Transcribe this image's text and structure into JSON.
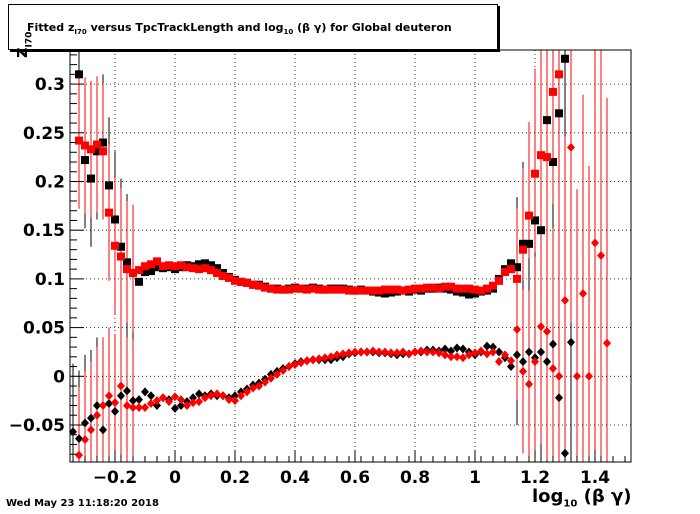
{
  "title": {
    "parts": [
      "Fitted  z",
      "I70",
      "  versus TpcTrackLength and log",
      "10",
      " (β γ) for Global deuteron"
    ]
  },
  "timestamp": "Wed May 23 11:18:20 2018",
  "chart_data": {
    "type": "scatter",
    "title": "Fitted z_I70 versus TpcTrackLength and log10 (β γ) for Global deuteron",
    "xlabel": "log10 (β γ)",
    "ylabel": "z_I70",
    "xlim": [
      -0.35,
      1.52
    ],
    "ylim": [
      -0.088,
      0.335
    ],
    "grid": true,
    "x_ticks": [
      -0.2,
      0,
      0.2,
      0.4,
      0.6,
      0.8,
      1,
      1.2,
      1.4
    ],
    "x_tick_labels": [
      "−0.2",
      "0",
      "0.2",
      "0.4",
      "0.6",
      "0.8",
      "1",
      "1.2",
      "1.4"
    ],
    "y_ticks": [
      -0.05,
      0,
      0.05,
      0.1,
      0.15,
      0.2,
      0.25,
      0.3
    ],
    "y_tick_labels": [
      "−0.05",
      "0",
      "0.05",
      "0.1",
      "0.15",
      "0.2",
      "0.25",
      "0.3"
    ],
    "colors": {
      "black": "#000000",
      "red": "#ff0000"
    },
    "series": [
      {
        "marker": "square",
        "color": "#000000",
        "x": [
          -0.32,
          -0.3,
          -0.28,
          -0.26,
          -0.24,
          -0.22,
          -0.2,
          -0.18,
          -0.16,
          -0.14,
          -0.12,
          -0.1,
          -0.08,
          -0.06,
          -0.04,
          -0.02,
          0,
          0.02,
          0.04,
          0.06,
          0.08,
          0.1,
          0.12,
          0.14,
          0.16,
          0.18,
          0.2,
          0.22,
          0.24,
          0.26,
          0.28,
          0.3,
          0.32,
          0.34,
          0.36,
          0.38,
          0.4,
          0.42,
          0.44,
          0.46,
          0.48,
          0.5,
          0.52,
          0.54,
          0.56,
          0.58,
          0.6,
          0.62,
          0.64,
          0.66,
          0.68,
          0.7,
          0.72,
          0.74,
          0.76,
          0.78,
          0.8,
          0.82,
          0.84,
          0.86,
          0.88,
          0.9,
          0.92,
          0.94,
          0.96,
          0.98,
          1,
          1.02,
          1.04,
          1.06,
          1.08,
          1.1,
          1.12,
          1.14,
          1.16,
          1.18,
          1.2,
          1.22,
          1.24,
          1.26,
          1.28,
          1.3
        ],
        "y": [
          0.31,
          0.222,
          0.203,
          0.231,
          0.24,
          0.196,
          0.161,
          0.133,
          0.117,
          0.106,
          0.097,
          0.107,
          0.108,
          0.112,
          0.111,
          0.112,
          0.11,
          0.112,
          0.114,
          0.113,
          0.115,
          0.116,
          0.114,
          0.111,
          0.106,
          0.102,
          0.099,
          0.097,
          0.096,
          0.094,
          0.094,
          0.092,
          0.09,
          0.09,
          0.089,
          0.09,
          0.091,
          0.09,
          0.09,
          0.091,
          0.09,
          0.089,
          0.09,
          0.09,
          0.09,
          0.089,
          0.088,
          0.089,
          0.088,
          0.087,
          0.086,
          0.085,
          0.086,
          0.087,
          0.088,
          0.087,
          0.089,
          0.088,
          0.09,
          0.09,
          0.091,
          0.09,
          0.089,
          0.087,
          0.086,
          0.084,
          0.085,
          0.087,
          0.088,
          0.09,
          0.1,
          0.11,
          0.116,
          0.112,
          0.136,
          0.136,
          0.16,
          0.15,
          0.263,
          0.22,
          0.27,
          0.326
        ]
      },
      {
        "marker": "square",
        "color": "#ff0000",
        "x": [
          -0.32,
          -0.3,
          -0.28,
          -0.26,
          -0.24,
          -0.22,
          -0.2,
          -0.18,
          -0.16,
          -0.14,
          -0.12,
          -0.1,
          -0.08,
          -0.06,
          -0.04,
          -0.02,
          0,
          0.02,
          0.04,
          0.06,
          0.08,
          0.1,
          0.12,
          0.14,
          0.16,
          0.18,
          0.2,
          0.22,
          0.24,
          0.26,
          0.28,
          0.3,
          0.32,
          0.34,
          0.36,
          0.38,
          0.4,
          0.42,
          0.44,
          0.46,
          0.48,
          0.5,
          0.52,
          0.54,
          0.56,
          0.58,
          0.6,
          0.62,
          0.64,
          0.66,
          0.68,
          0.7,
          0.72,
          0.74,
          0.76,
          0.78,
          0.8,
          0.82,
          0.84,
          0.86,
          0.88,
          0.9,
          0.92,
          0.94,
          0.96,
          0.98,
          1,
          1.02,
          1.04,
          1.06,
          1.08,
          1.1,
          1.12,
          1.14,
          1.16,
          1.18,
          1.2,
          1.22,
          1.24,
          1.26,
          1.28
        ],
        "y": [
          0.242,
          0.237,
          0.233,
          0.238,
          0.231,
          0.168,
          0.134,
          0.123,
          0.11,
          0.106,
          0.109,
          0.113,
          0.115,
          0.118,
          0.113,
          0.114,
          0.113,
          0.114,
          0.112,
          0.111,
          0.11,
          0.111,
          0.109,
          0.106,
          0.103,
          0.101,
          0.098,
          0.097,
          0.096,
          0.094,
          0.093,
          0.091,
          0.09,
          0.089,
          0.089,
          0.089,
          0.09,
          0.09,
          0.089,
          0.09,
          0.089,
          0.089,
          0.089,
          0.089,
          0.089,
          0.088,
          0.088,
          0.088,
          0.088,
          0.088,
          0.088,
          0.089,
          0.089,
          0.089,
          0.088,
          0.089,
          0.09,
          0.09,
          0.091,
          0.091,
          0.09,
          0.092,
          0.092,
          0.09,
          0.09,
          0.09,
          0.089,
          0.088,
          0.09,
          0.093,
          0.098,
          0.107,
          0.11,
          0.1,
          0.13,
          0.165,
          0.208,
          0.227,
          0.225,
          0.292,
          0.31
        ]
      },
      {
        "marker": "diamond",
        "color": "#000000",
        "x": [
          -0.36,
          -0.34,
          -0.32,
          -0.3,
          -0.28,
          -0.26,
          -0.24,
          -0.22,
          -0.2,
          -0.18,
          -0.16,
          -0.14,
          -0.12,
          -0.1,
          -0.08,
          -0.06,
          -0.04,
          -0.02,
          0,
          0.02,
          0.04,
          0.06,
          0.08,
          0.1,
          0.12,
          0.14,
          0.16,
          0.18,
          0.2,
          0.22,
          0.24,
          0.26,
          0.28,
          0.3,
          0.32,
          0.34,
          0.36,
          0.38,
          0.4,
          0.42,
          0.44,
          0.46,
          0.48,
          0.5,
          0.52,
          0.54,
          0.56,
          0.58,
          0.6,
          0.62,
          0.64,
          0.66,
          0.68,
          0.7,
          0.72,
          0.74,
          0.76,
          0.78,
          0.8,
          0.82,
          0.84,
          0.86,
          0.88,
          0.9,
          0.92,
          0.94,
          0.96,
          0.98,
          1,
          1.02,
          1.04,
          1.06,
          1.08,
          1.1,
          1.12,
          1.14,
          1.16,
          1.18,
          1.2,
          1.22,
          1.24,
          1.26,
          1.28,
          1.3,
          1.32,
          1.34,
          1.36,
          1.38,
          1.4,
          1.42,
          1.44,
          1.46,
          1.48,
          1.5
        ],
        "y": [
          -0.079,
          -0.057,
          -0.064,
          -0.048,
          -0.043,
          -0.03,
          -0.055,
          -0.028,
          -0.036,
          -0.02,
          -0.015,
          -0.025,
          -0.024,
          -0.016,
          -0.02,
          -0.03,
          -0.022,
          -0.024,
          -0.033,
          -0.03,
          -0.026,
          -0.022,
          -0.018,
          -0.02,
          -0.018,
          -0.02,
          -0.02,
          -0.022,
          -0.02,
          -0.016,
          -0.013,
          -0.009,
          -0.007,
          -0.003,
          0.002,
          0.005,
          0.008,
          0.01,
          0.013,
          0.015,
          0.016,
          0.017,
          0.017,
          0.017,
          0.017,
          0.019,
          0.02,
          0.023,
          0.024,
          0.025,
          0.025,
          0.025,
          0.024,
          0.024,
          0.023,
          0.022,
          0.023,
          0.023,
          0.025,
          0.025,
          0.027,
          0.027,
          0.026,
          0.028,
          0.026,
          0.029,
          0.028,
          0.025,
          0.022,
          0.025,
          0.031,
          0.03,
          0.025,
          0.019,
          0.01,
          0.022,
          0.015,
          0.025,
          0.019,
          0.025,
          0.015,
          0.033,
          -0.022,
          -0.079,
          0.035,
          0.025,
          0.083,
          0.0,
          -0.022,
          0.013,
          0.0,
          0.0,
          0.0,
          0.011
        ],
        "visible_count": 85
      },
      {
        "marker": "diamond",
        "color": "#ff0000",
        "x": [
          -0.32,
          -0.3,
          -0.28,
          -0.26,
          -0.24,
          -0.22,
          -0.2,
          -0.18,
          -0.16,
          -0.14,
          -0.12,
          -0.1,
          -0.08,
          -0.06,
          -0.04,
          -0.02,
          0,
          0.02,
          0.04,
          0.06,
          0.08,
          0.1,
          0.12,
          0.14,
          0.16,
          0.18,
          0.2,
          0.22,
          0.24,
          0.26,
          0.28,
          0.3,
          0.32,
          0.34,
          0.36,
          0.38,
          0.4,
          0.42,
          0.44,
          0.46,
          0.48,
          0.5,
          0.52,
          0.54,
          0.56,
          0.58,
          0.6,
          0.62,
          0.64,
          0.66,
          0.68,
          0.7,
          0.72,
          0.74,
          0.76,
          0.78,
          0.8,
          0.82,
          0.84,
          0.86,
          0.88,
          0.9,
          0.92,
          0.94,
          0.96,
          0.98,
          1,
          1.02,
          1.04,
          1.06,
          1.08,
          1.1,
          1.12,
          1.14,
          1.16,
          1.18,
          1.2,
          1.22,
          1.24,
          1.26,
          1.28,
          1.3,
          1.32,
          1.34,
          1.36,
          1.38,
          1.4,
          1.42,
          1.44,
          1.46,
          1.48,
          1.5
        ],
        "y": [
          -0.081,
          -0.065,
          -0.055,
          -0.04,
          -0.03,
          -0.02,
          -0.027,
          -0.01,
          -0.03,
          -0.032,
          -0.032,
          -0.032,
          -0.028,
          -0.025,
          -0.022,
          -0.026,
          -0.021,
          -0.024,
          -0.03,
          -0.027,
          -0.026,
          -0.022,
          -0.02,
          -0.018,
          -0.02,
          -0.024,
          -0.025,
          -0.02,
          -0.016,
          -0.012,
          -0.01,
          -0.006,
          -0.002,
          0.002,
          0.006,
          0.01,
          0.012,
          0.014,
          0.016,
          0.017,
          0.018,
          0.019,
          0.02,
          0.022,
          0.023,
          0.024,
          0.025,
          0.025,
          0.025,
          0.026,
          0.025,
          0.025,
          0.024,
          0.024,
          0.025,
          0.023,
          0.025,
          0.026,
          0.025,
          0.025,
          0.024,
          0.022,
          0.02,
          0.02,
          0.019,
          0.022,
          0.024,
          0.026,
          0.023,
          0.025,
          0.015,
          0.022,
          0.016,
          0.048,
          0.005,
          -0.008,
          0.015,
          0.051,
          0.046,
          0.008,
          0.0,
          0.078,
          0.235,
          0.0,
          0.085,
          0.0,
          0.137,
          0.124,
          0.034,
          0.0,
          0.0,
          0.0
        ],
        "visible_count": 89
      }
    ]
  }
}
